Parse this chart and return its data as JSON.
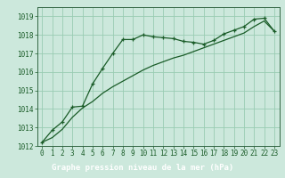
{
  "title": "Graphe pression niveau de la mer (hPa)",
  "bg_color": "#cce8dc",
  "plot_bg_color": "#cce8dc",
  "grid_color": "#99ccb3",
  "line_color": "#1a5c28",
  "xlabel_bg": "#2d6e3e",
  "xlabel_fg": "#ffffff",
  "spine_color": "#336644",
  "xlim": [
    -0.5,
    23.5
  ],
  "ylim": [
    1012,
    1019.5
  ],
  "yticks": [
    1012,
    1013,
    1014,
    1015,
    1016,
    1017,
    1018,
    1019
  ],
  "xticks": [
    0,
    1,
    2,
    3,
    4,
    5,
    6,
    7,
    8,
    9,
    10,
    11,
    12,
    13,
    14,
    15,
    16,
    17,
    18,
    19,
    20,
    21,
    22,
    23
  ],
  "series1_x": [
    0,
    1,
    2,
    3,
    4,
    5,
    6,
    7,
    8,
    9,
    10,
    11,
    12,
    13,
    14,
    15,
    16,
    17,
    18,
    19,
    20,
    21,
    22,
    23
  ],
  "series1_y": [
    1012.2,
    1012.85,
    1013.3,
    1014.1,
    1014.15,
    1015.35,
    1016.2,
    1017.0,
    1017.75,
    1017.75,
    1018.0,
    1017.9,
    1017.85,
    1017.8,
    1017.65,
    1017.6,
    1017.5,
    1017.7,
    1018.05,
    1018.25,
    1018.45,
    1018.85,
    1018.9,
    1018.2
  ],
  "series2_x": [
    0,
    1,
    2,
    3,
    4,
    5,
    6,
    7,
    8,
    9,
    10,
    11,
    12,
    13,
    14,
    15,
    16,
    17,
    18,
    19,
    20,
    21,
    22,
    23
  ],
  "series2_y": [
    1012.2,
    1012.45,
    1012.9,
    1013.55,
    1014.05,
    1014.4,
    1014.85,
    1015.2,
    1015.5,
    1015.8,
    1016.1,
    1016.35,
    1016.55,
    1016.75,
    1016.9,
    1017.1,
    1017.3,
    1017.5,
    1017.7,
    1017.9,
    1018.1,
    1018.45,
    1018.75,
    1018.2
  ],
  "tick_fontsize": 5.5,
  "title_fontsize": 6.5
}
